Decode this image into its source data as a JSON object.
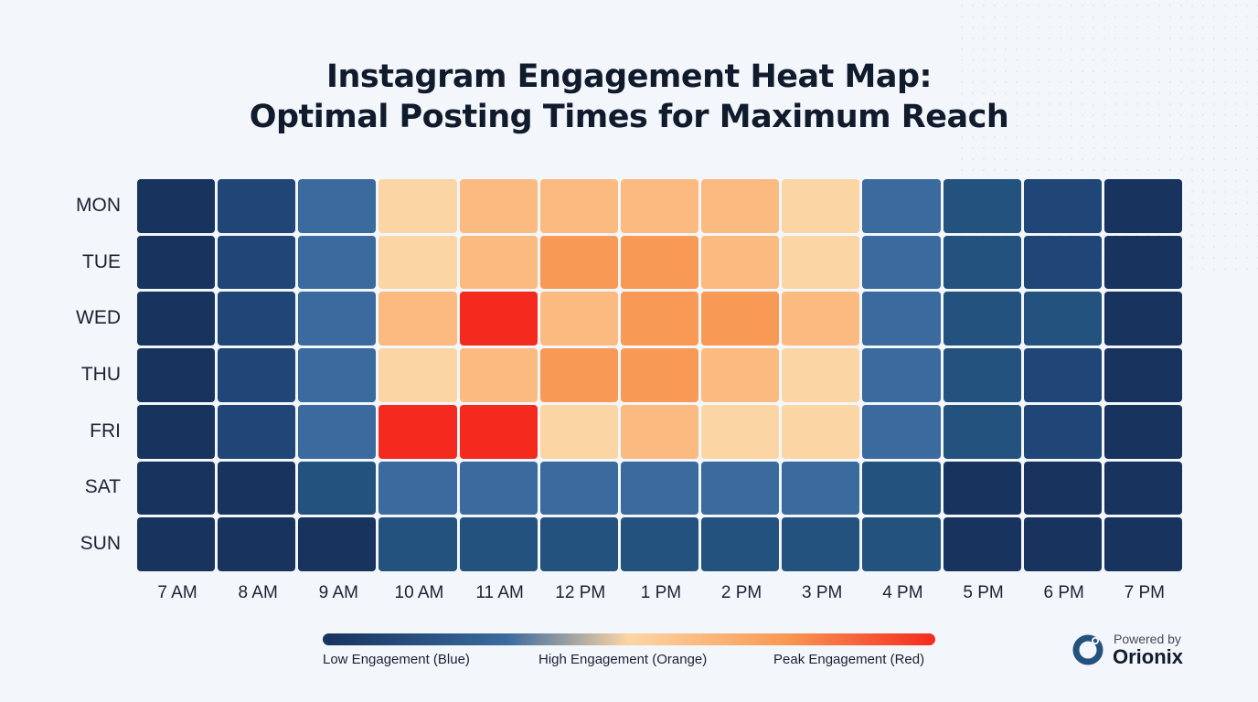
{
  "title_line1": "Instagram Engagement Heat Map:",
  "title_line2": "Optimal Posting Times for Maximum Reach",
  "chart_data": {
    "type": "heatmap",
    "title": "Instagram Engagement Heat Map: Optimal Posting Times for Maximum Reach",
    "x_categories": [
      "7 AM",
      "8 AM",
      "9 AM",
      "10 AM",
      "11 AM",
      "12 PM",
      "1 PM",
      "2 PM",
      "3 PM",
      "4 PM",
      "5 PM",
      "6 PM",
      "7 PM"
    ],
    "y_categories": [
      "MON",
      "TUE",
      "WED",
      "THU",
      "FRI",
      "SAT",
      "SUN"
    ],
    "value_scale": "relative engagement level 1 (lowest) to 8 (peak)",
    "values": [
      [
        1,
        2,
        4,
        5,
        6,
        6,
        6,
        6,
        5,
        4,
        3,
        2,
        1
      ],
      [
        1,
        2,
        4,
        5,
        6,
        7,
        7,
        6,
        5,
        4,
        3,
        2,
        1
      ],
      [
        1,
        2,
        4,
        6,
        8,
        6,
        7,
        7,
        6,
        4,
        3,
        3,
        1
      ],
      [
        1,
        2,
        4,
        5,
        6,
        7,
        7,
        6,
        5,
        4,
        3,
        2,
        1
      ],
      [
        1,
        2,
        4,
        8,
        8,
        5,
        6,
        5,
        5,
        4,
        3,
        2,
        1
      ],
      [
        1,
        1,
        3,
        4,
        4,
        4,
        4,
        4,
        4,
        3,
        1,
        1,
        1
      ],
      [
        1,
        1,
        1,
        3,
        3,
        3,
        3,
        3,
        3,
        3,
        1,
        1,
        1
      ]
    ],
    "colors": [
      "#17335e",
      "#1f4677",
      "#24527f",
      "#3a6a9e",
      "#fcd5a5",
      "#fbbb80",
      "#f89a55",
      "#f52a1f"
    ],
    "legend": {
      "low": "Low Engagement (Blue)",
      "high": "High Engagement (Orange)",
      "peak": "Peak Engagement (Red)"
    }
  },
  "branding": {
    "powered_by": "Powered by",
    "name": "Orionix"
  }
}
